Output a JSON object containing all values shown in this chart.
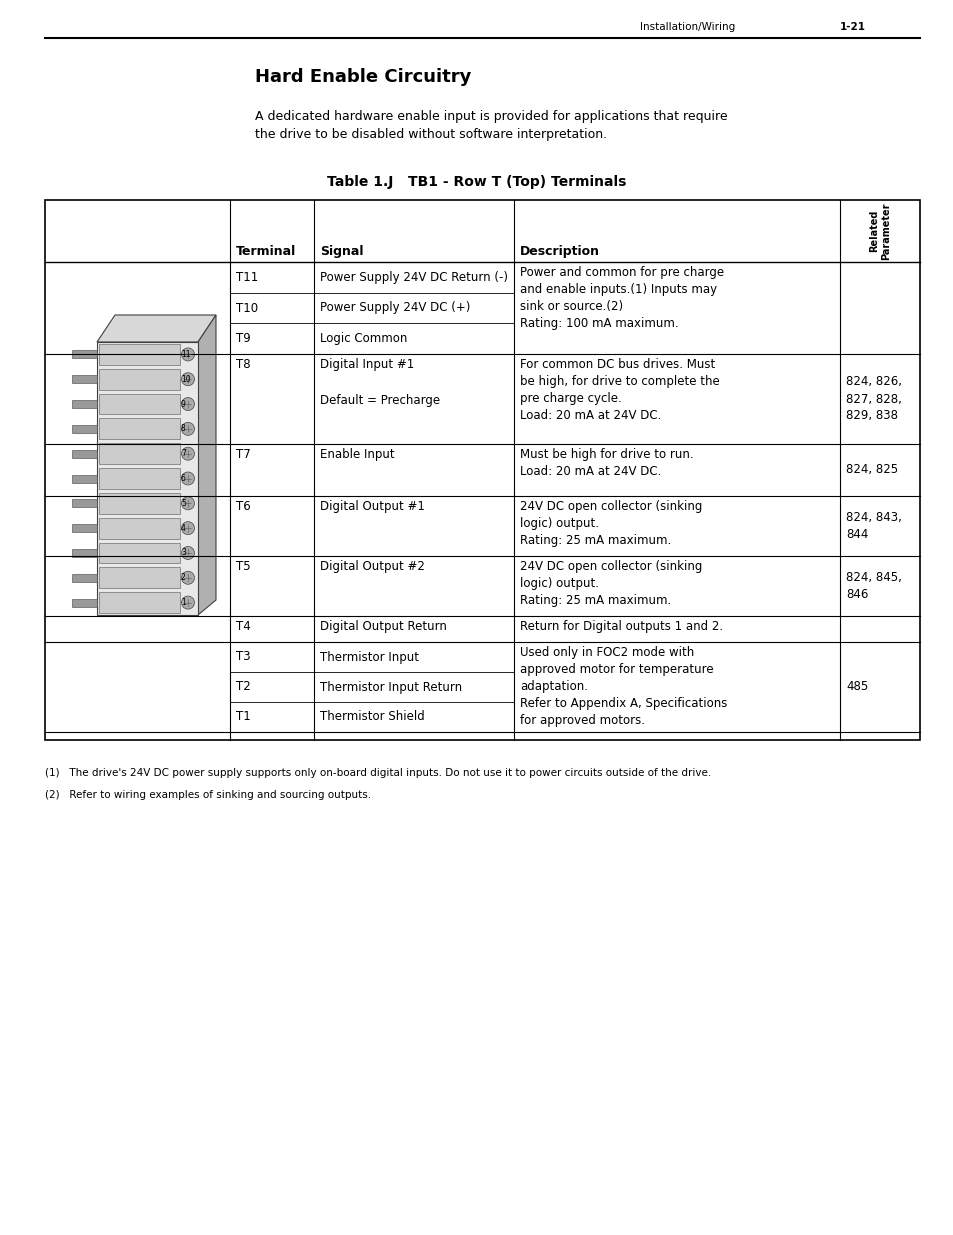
{
  "page_header_left": "Installation/Wiring",
  "page_header_right": "1-21",
  "title": "Hard Enable Circuitry",
  "intro_text": "A dedicated hardware enable input is provided for applications that require\nthe drive to be disabled without software interpretation.",
  "table_title": "Table 1.J   TB1 - Row T (Top) Terminals",
  "footnotes": [
    "(1)   The drive's 24V DC power supply supports only on-board digital inputs. Do not use it to power circuits outside of the drive.",
    "(2)   Refer to wiring examples of sinking and sourcing outputs."
  ],
  "bg_color": "#ffffff",
  "text_color": "#000000",
  "line_color": "#000000",
  "font_size_title": 13,
  "font_size_body": 8.5,
  "font_size_small": 7.5,
  "font_size_table_header": 9
}
